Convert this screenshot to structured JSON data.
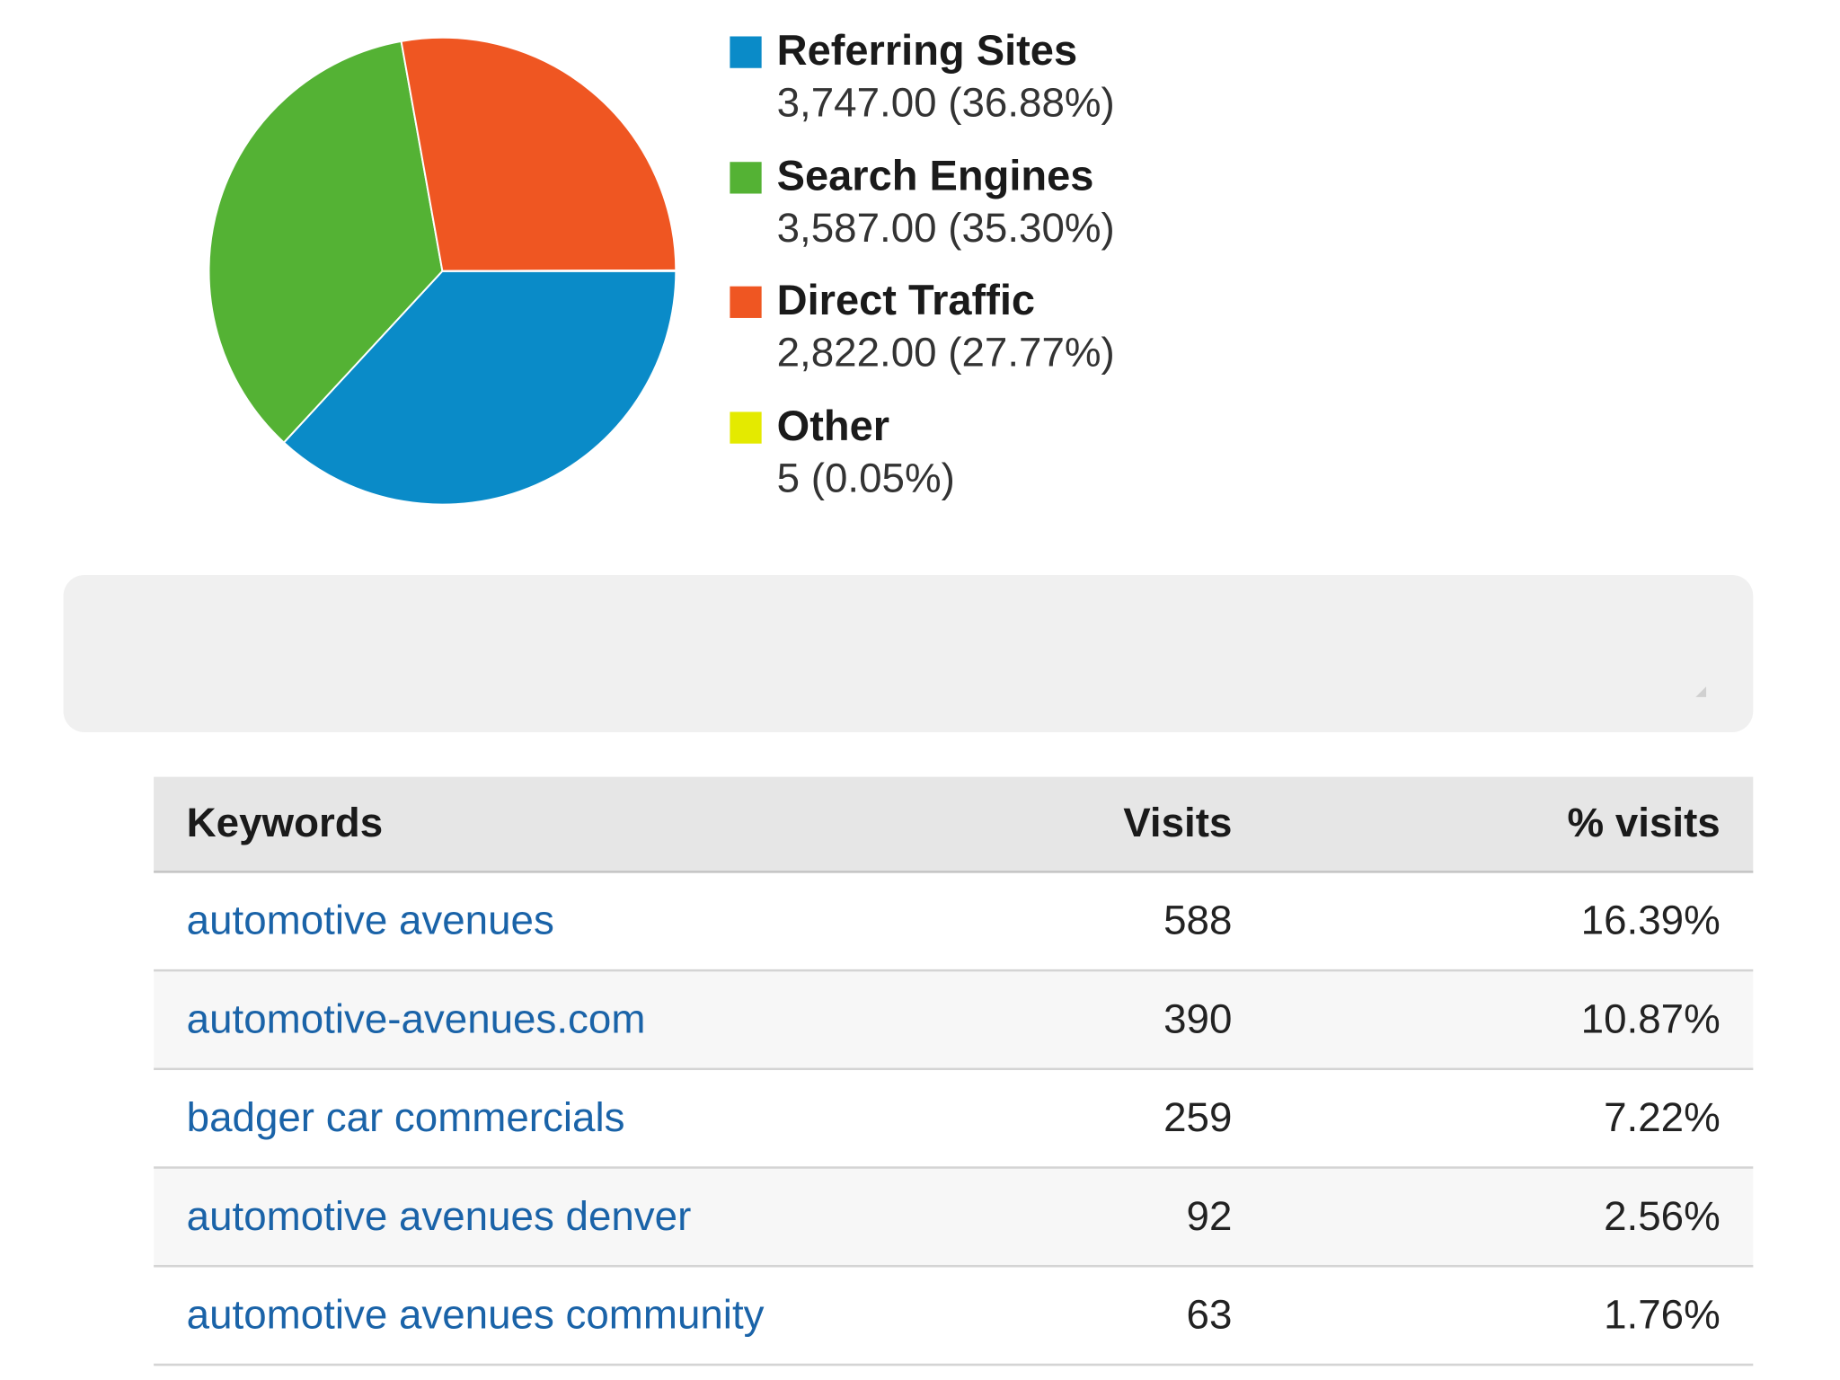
{
  "chart_data": {
    "type": "pie",
    "slices": [
      {
        "label": "Referring Sites",
        "value": 3747.0,
        "display_value": "3,747.00 (36.88%)",
        "color": "#0a8bc8"
      },
      {
        "label": "Search Engines",
        "value": 3587.0,
        "display_value": "3,587.00 (35.30%)",
        "color": "#54b234"
      },
      {
        "label": "Direct Traffic",
        "value": 2822.0,
        "display_value": "2,822.00 (27.77%)",
        "color": "#ef5622"
      },
      {
        "label": "Other",
        "value": 5,
        "display_value": "5 (0.05%)",
        "color": "#e4ea00"
      }
    ],
    "start_angle_deg": 0,
    "direction": "clockwise",
    "legend_position": "right"
  },
  "keywords_table": {
    "headers": {
      "keywords": "Keywords",
      "visits": "Visits",
      "pct_visits": "% visits"
    },
    "rows": [
      {
        "keyword": "automotive avenues",
        "visits": "588",
        "pct": "16.39%"
      },
      {
        "keyword": "automotive-avenues.com",
        "visits": "390",
        "pct": "10.87%"
      },
      {
        "keyword": "badger car commercials",
        "visits": "259",
        "pct": "7.22%"
      },
      {
        "keyword": "automotive avenues denver",
        "visits": "92",
        "pct": "2.56%"
      },
      {
        "keyword": "automotive avenues community",
        "visits": "63",
        "pct": "1.76%"
      }
    ]
  }
}
